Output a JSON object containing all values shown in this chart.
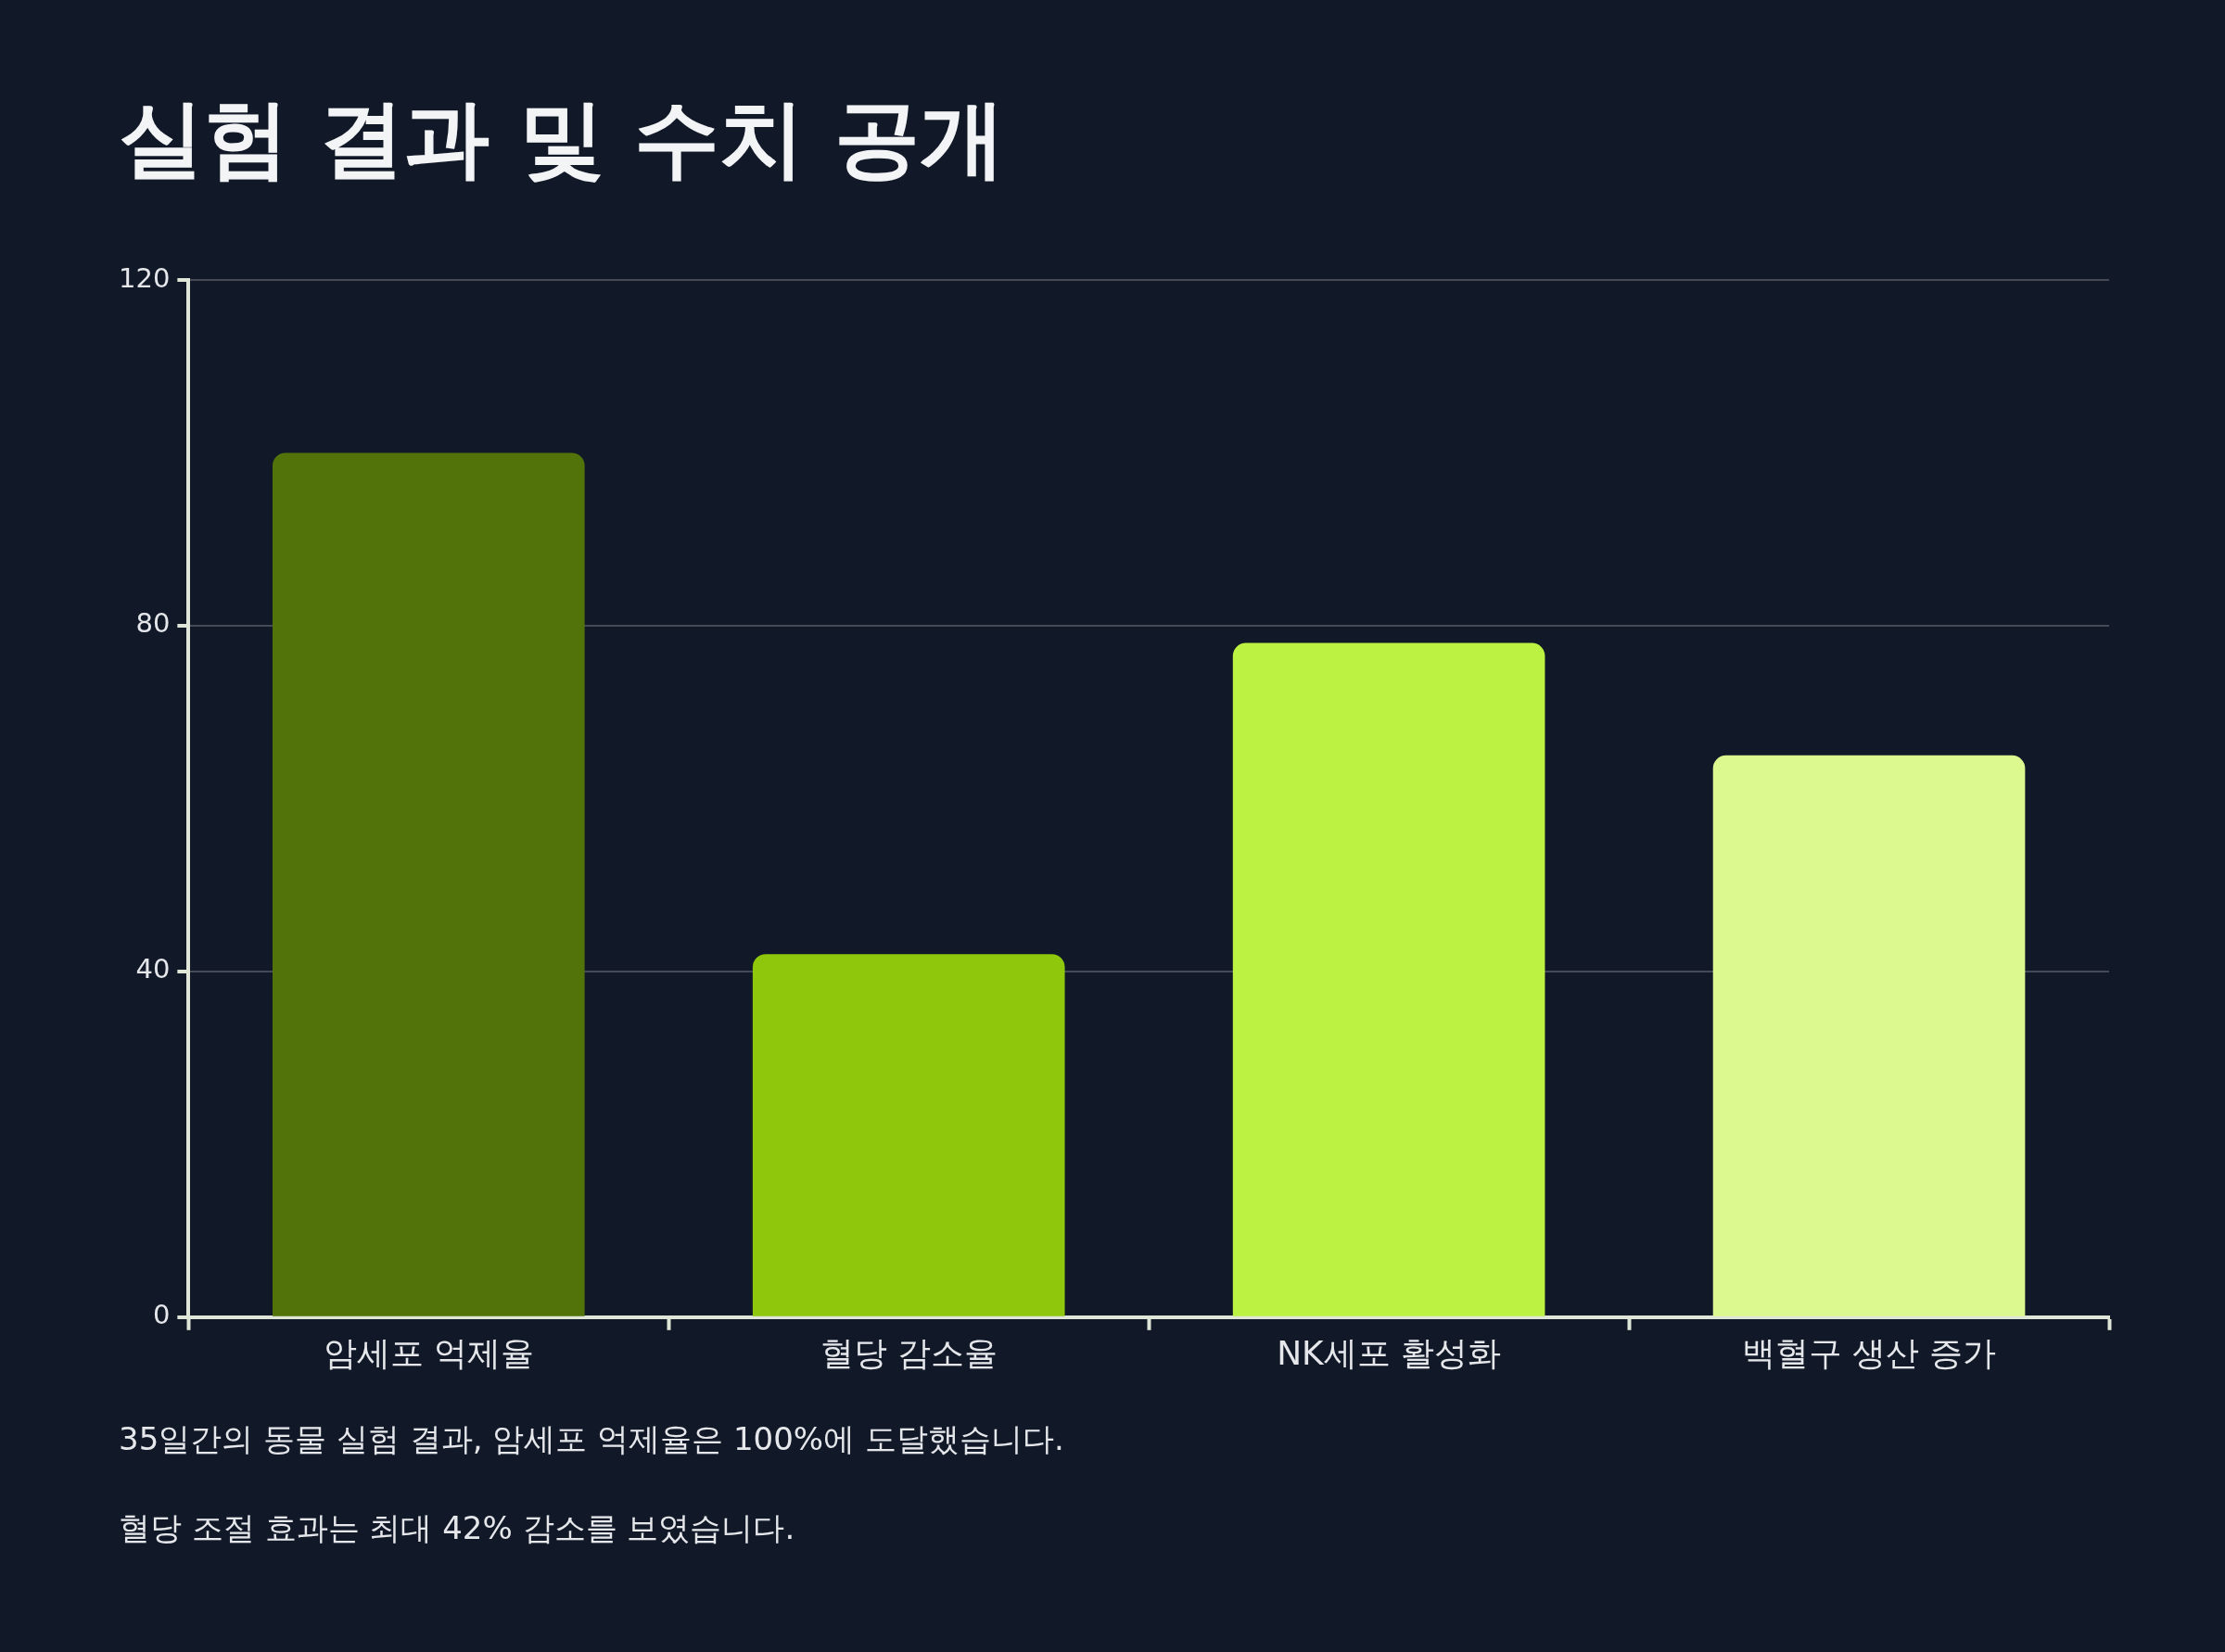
{
  "chart_data": {
    "type": "bar",
    "title": "실험 결과 및 수치 공개",
    "categories": [
      "암세포 억제율",
      "혈당 감소율",
      "NK세포 활성화",
      "백혈구 생산 증가"
    ],
    "values": [
      100,
      42,
      78,
      65
    ],
    "colors": [
      "#52730a",
      "#8fc70d",
      "#bcf242",
      "#dcf990"
    ],
    "ylim": [
      0,
      120
    ],
    "yticks": [
      0,
      40,
      80,
      120
    ],
    "grid": "y",
    "annotations": [
      "35일간의 동물 실험 결과, 암세포 억제율은 100%에 도달했습니다.",
      "혈당 조절 효과는 최대 42% 감소를 보였습니다."
    ]
  }
}
